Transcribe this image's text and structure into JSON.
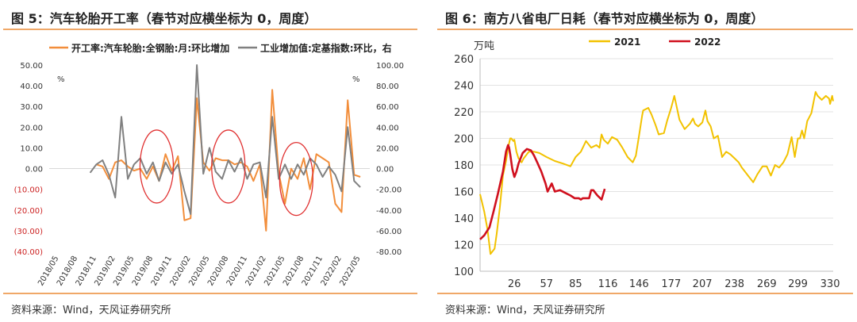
{
  "panels": [
    {
      "title": "图 5：汽车轮胎开工率（春节对应横坐标为 0，周度）",
      "source": "资料来源：Wind，天风证券研究所"
    },
    {
      "title": "图 6：南方八省电厂日耗（春节对应横坐标为 0，周度）",
      "source": "资料来源：Wind，天风证券研究所"
    }
  ],
  "colors": {
    "orange": "#F28E3B",
    "gray": "#808080",
    "red_ticks": "#CC2222",
    "ellipse": "#E03030",
    "yellow": "#F2C200",
    "red2022": "#D0101E",
    "divider": "#F0A868"
  },
  "chart_data": [
    {
      "type": "line",
      "legend_position": "top",
      "y_unit_left": "%",
      "y_unit_right": "%",
      "ylim_left": [
        -40,
        50
      ],
      "ylim_right": [
        -80,
        100
      ],
      "yticks_left": [
        "50.00",
        "40.00",
        "30.00",
        "20.00",
        "10.00",
        "0.00",
        "(10.00)",
        "(20.00)",
        "(30.00)",
        "(40.00)"
      ],
      "yticks_right": [
        "100.00",
        "80.00",
        "60.00",
        "40.00",
        "20.00",
        "0.00",
        "-20.00",
        "-40.00",
        "-60.00",
        "-80.00"
      ],
      "xticks": [
        "2018/05",
        "2018/08",
        "2018/11",
        "2019/02",
        "2019/05",
        "2019/08",
        "2019/11",
        "2020/02",
        "2020/05",
        "2020/08",
        "2020/11",
        "2021/02",
        "2021/05",
        "2021/08",
        "2021/11",
        "2022/02",
        "2022/05"
      ],
      "series": [
        {
          "name": "开工率:汽车轮胎:全钢胎:月:环比增加",
          "axis": "left",
          "x": [
            2.0,
            2.33,
            2.67,
            3.0,
            3.33,
            3.67,
            4.0,
            4.33,
            4.67,
            5.0,
            5.33,
            5.67,
            6.0,
            6.33,
            6.67,
            7.0,
            7.33,
            7.67,
            8.0,
            8.33,
            8.67,
            9.0,
            9.33,
            9.67,
            10.0,
            10.33,
            10.67,
            11.0,
            11.33,
            11.67,
            12.0,
            12.33,
            12.67,
            13.0,
            13.33,
            13.67,
            14.0,
            14.33,
            14.67,
            15.0,
            15.33,
            15.67,
            16.0
          ],
          "values": [
            2,
            1,
            -5,
            3,
            4,
            1,
            -1,
            0,
            -5,
            1,
            -6,
            7,
            -1,
            6,
            -25,
            -24,
            34,
            3,
            -1,
            5,
            4,
            4,
            2,
            3,
            1,
            -6,
            2,
            -30,
            38,
            -2,
            -17,
            0,
            -5,
            5,
            -10,
            7,
            5,
            3,
            -17,
            -21,
            33,
            -3,
            -4
          ]
        },
        {
          "name": "工业增加值:定基指数:环比，右",
          "axis": "right",
          "x": [
            1.67,
            2.0,
            2.33,
            2.67,
            3.0,
            3.33,
            3.67,
            4.0,
            4.33,
            4.67,
            5.0,
            5.33,
            5.67,
            6.0,
            6.33,
            6.67,
            7.0,
            7.33,
            7.67,
            8.0,
            8.33,
            8.67,
            9.0,
            9.33,
            9.67,
            10.0,
            10.33,
            10.67,
            11.0,
            11.33,
            11.67,
            12.0,
            12.33,
            12.67,
            13.0,
            13.33,
            13.67,
            14.0,
            14.33,
            14.67,
            15.0,
            15.33,
            15.67,
            16.0
          ],
          "values": [
            -4,
            4,
            8,
            -6,
            -28,
            50,
            -10,
            4,
            10,
            -5,
            6,
            -12,
            6,
            -5,
            4,
            -22,
            -44,
            100,
            -5,
            20,
            -3,
            -10,
            8,
            -3,
            10,
            -10,
            4,
            6,
            -28,
            50,
            -10,
            4,
            -10,
            4,
            -6,
            10,
            4,
            -8,
            2,
            -6,
            -22,
            40,
            -12,
            -18
          ]
        }
      ],
      "annotations": [
        {
          "shape": "ellipse",
          "x_center": 5.2,
          "y_left": 1.0
        },
        {
          "shape": "ellipse",
          "x_center": 9.0,
          "y_left": 1.0
        },
        {
          "shape": "ellipse",
          "x_center": 12.6,
          "y_left": -5.0
        }
      ]
    },
    {
      "type": "line",
      "legend_position": "top",
      "y_unit": "万吨",
      "ylim": [
        100,
        260
      ],
      "yticks": [
        "260",
        "240",
        "220",
        "200",
        "180",
        "160",
        "140",
        "120",
        "100"
      ],
      "xlim": [
        -7,
        333
      ],
      "xticks": [
        "26",
        "57",
        "85",
        "116",
        "146",
        "177",
        "207",
        "238",
        "269",
        "299",
        "330"
      ],
      "series": [
        {
          "name": "2021",
          "x": [
            -7,
            -3,
            0,
            3,
            7,
            9,
            12,
            15,
            18,
            20,
            22,
            23,
            25,
            26,
            28,
            30,
            33,
            35,
            40,
            45,
            50,
            57,
            65,
            73,
            80,
            85,
            90,
            95,
            100,
            105,
            108,
            110,
            112,
            116,
            120,
            125,
            130,
            135,
            140,
            143,
            146,
            149,
            150,
            155,
            158,
            162,
            165,
            170,
            173,
            177,
            180,
            185,
            190,
            195,
            198,
            200,
            203,
            207,
            210,
            212,
            215,
            218,
            222,
            226,
            230,
            234,
            238,
            242,
            245,
            248,
            252,
            256,
            260,
            265,
            269,
            273,
            277,
            281,
            285,
            289,
            293,
            296,
            299,
            301,
            303,
            305,
            308,
            312,
            316,
            318,
            322,
            326,
            329,
            330,
            332,
            333
          ],
          "values": [
            158,
            145,
            132,
            113,
            117,
            128,
            148,
            172,
            183,
            193,
            200,
            200,
            198,
            199,
            190,
            185,
            182,
            185,
            190,
            190,
            189,
            186,
            183,
            181,
            179,
            186,
            190,
            198,
            193,
            195,
            193,
            203,
            199,
            196,
            201,
            199,
            193,
            186,
            182,
            187,
            202,
            217,
            221,
            223,
            218,
            210,
            203,
            204,
            213,
            223,
            232,
            214,
            207,
            211,
            215,
            211,
            209,
            212,
            221,
            213,
            209,
            200,
            202,
            186,
            190,
            188,
            185,
            182,
            178,
            175,
            171,
            167,
            173,
            179,
            179,
            172,
            180,
            178,
            182,
            188,
            201,
            186,
            200,
            200,
            206,
            200,
            213,
            219,
            235,
            232,
            229,
            232,
            230,
            226,
            232,
            228
          ]
        },
        {
          "name": "2022",
          "x": [
            -7,
            -3,
            2,
            6,
            10,
            15,
            18,
            20,
            21,
            22,
            24,
            26,
            28,
            30,
            34,
            38,
            42,
            45,
            48,
            52,
            56,
            58,
            60,
            62,
            65,
            70,
            75,
            80,
            84,
            88,
            90,
            92,
            95,
            98,
            100,
            102,
            104,
            106,
            110,
            113
          ],
          "values": [
            124,
            127,
            133,
            145,
            158,
            175,
            190,
            195,
            193,
            188,
            177,
            171,
            175,
            181,
            189,
            192,
            191,
            187,
            182,
            175,
            166,
            160,
            163,
            166,
            160,
            161,
            159,
            157,
            155,
            155,
            154,
            155,
            155,
            155,
            161,
            161,
            159,
            157,
            154,
            162
          ]
        }
      ]
    }
  ]
}
